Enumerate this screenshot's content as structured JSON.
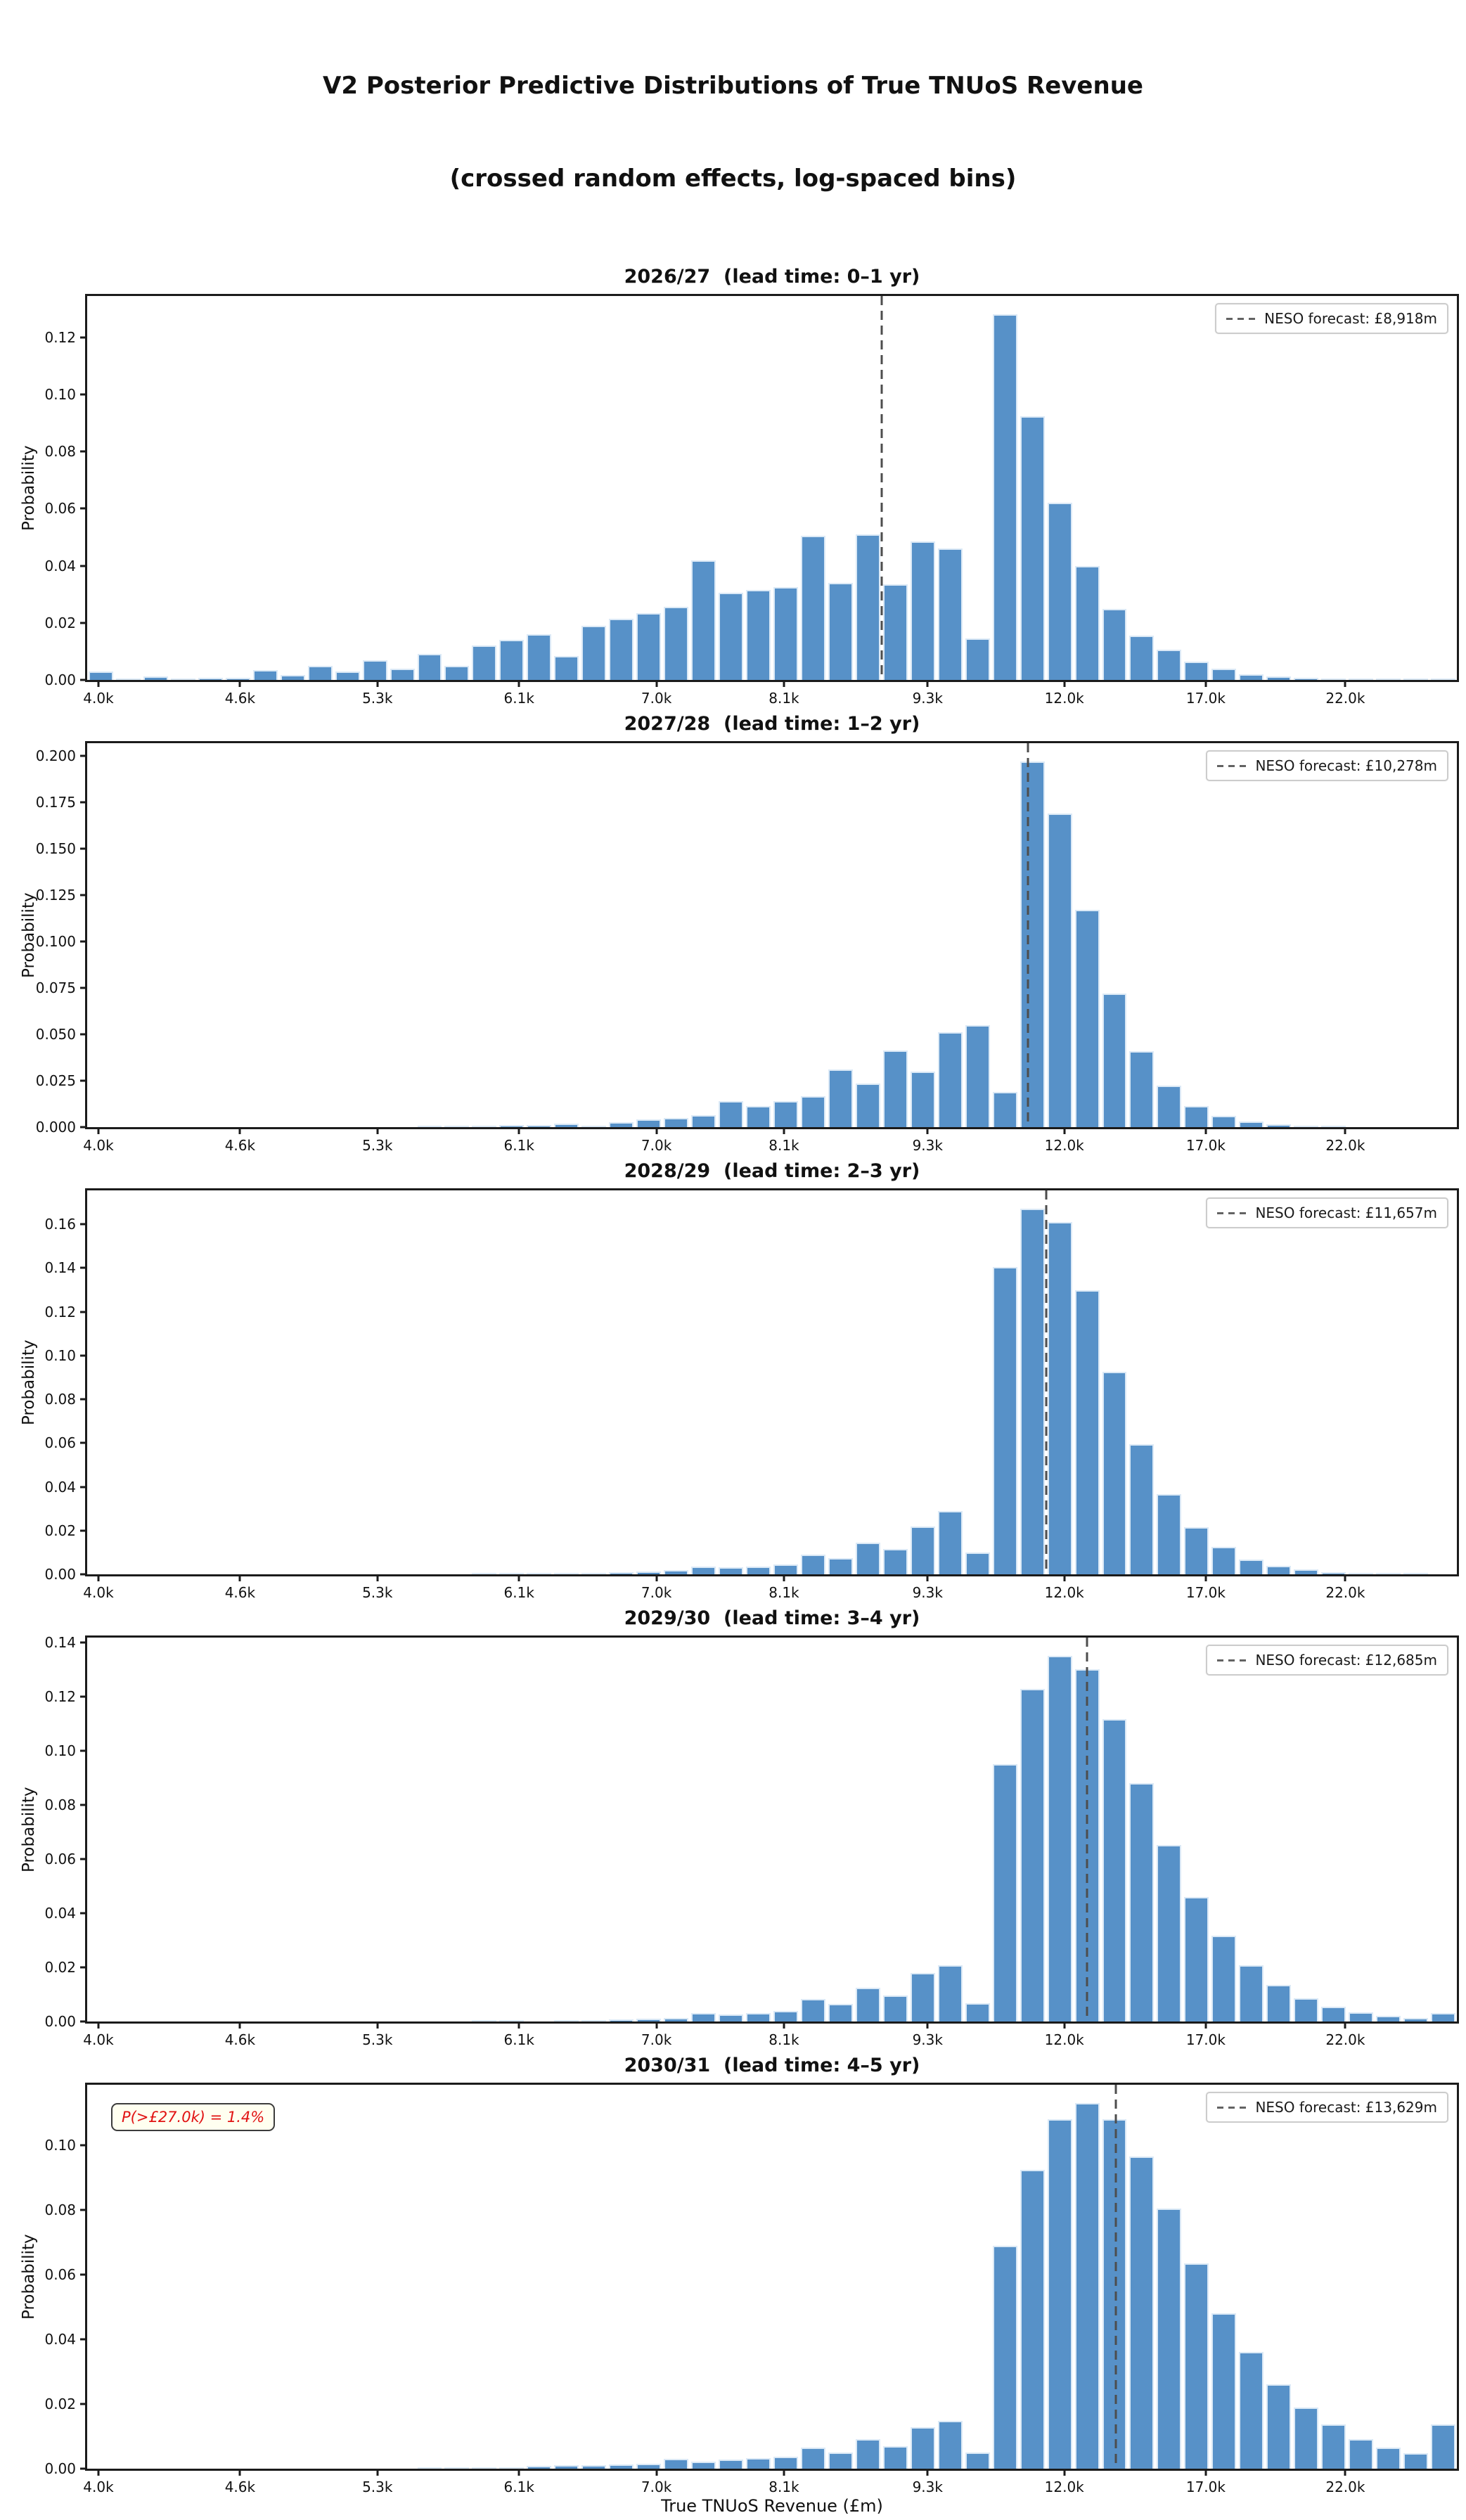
{
  "figure": {
    "title_line1": "V2 Posterior Predictive Distributions of True TNUoS Revenue",
    "title_line2": "(crossed random effects, log-spaced bins)"
  },
  "chart_data": {
    "type": "bar",
    "subtype": "histogram, log-spaced bins, 50 bins per panel",
    "figure_title": [
      "V2 Posterior Predictive Distributions of True TNUoS Revenue",
      "(crossed random effects, log-spaced bins)"
    ],
    "xlabel": "True TNUoS Revenue (£m)",
    "ylabel": "Probability",
    "legend_position": "upper right",
    "grid": false,
    "x_ticks": {
      "labels": [
        "4.0k",
        "4.6k",
        "5.3k",
        "6.1k",
        "7.0k",
        "8.1k",
        "9.3k",
        "12.0k",
        "17.0k",
        "22.0k"
      ],
      "fracs": [
        0.0082,
        0.1116,
        0.2119,
        0.3153,
        0.4156,
        0.5087,
        0.6136,
        0.7134,
        0.8167,
        0.9186
      ]
    },
    "neso_forecast_values_gbp_m": [
      8918,
      10278,
      11657,
      12685,
      13629
    ],
    "charts": [
      {
        "title": "2026/27  (lead time: 0–1 yr)",
        "legend_label": "NESO forecast: £8,918m",
        "neso_forecast_gbp_m": 8918,
        "neso_line_frac": 0.58,
        "ymax": 0.1345,
        "ytick_labels": [
          "0.00",
          "0.02",
          "0.04",
          "0.06",
          "0.08",
          "0.10",
          "0.12"
        ],
        "ytick_values": [
          0.0,
          0.02,
          0.04,
          0.06,
          0.08,
          0.1,
          0.12
        ],
        "values": [
          0.003,
          0.0004,
          0.0013,
          0.0006,
          0.0008,
          0.0008,
          0.0035,
          0.0017,
          0.005,
          0.003,
          0.007,
          0.004,
          0.009,
          0.005,
          0.012,
          0.014,
          0.016,
          0.0085,
          0.019,
          0.0215,
          0.0235,
          0.0255,
          0.042,
          0.0305,
          0.0315,
          0.0325,
          0.0505,
          0.034,
          0.051,
          0.0335,
          0.0485,
          0.046,
          0.0145,
          0.128,
          0.0925,
          0.062,
          0.04,
          0.025,
          0.0155,
          0.0105,
          0.0065,
          0.004,
          0.002,
          0.0013,
          0.0008,
          0.0005,
          0.0003,
          0.0002,
          0.0001,
          0.0004
        ]
      },
      {
        "title": "2027/28  (lead time: 1–2 yr)",
        "legend_label": "NESO forecast: £10,278m",
        "neso_forecast_gbp_m": 10278,
        "neso_line_frac": 0.687,
        "ymax": 0.207,
        "ytick_labels": [
          "0.000",
          "0.025",
          "0.050",
          "0.075",
          "0.100",
          "0.125",
          "0.150",
          "0.175",
          "0.200"
        ],
        "ytick_values": [
          0.0,
          0.025,
          0.05,
          0.075,
          0.1,
          0.125,
          0.15,
          0.175,
          0.2
        ],
        "values": [
          0,
          0,
          0,
          0,
          0,
          0,
          0,
          0,
          0,
          0,
          0,
          0,
          0.0004,
          0.0002,
          0.0008,
          0.001,
          0.0013,
          0.0018,
          0.0008,
          0.0028,
          0.004,
          0.005,
          0.0065,
          0.014,
          0.0115,
          0.014,
          0.0165,
          0.031,
          0.0235,
          0.0415,
          0.03,
          0.051,
          0.055,
          0.019,
          0.197,
          0.169,
          0.117,
          0.072,
          0.041,
          0.0225,
          0.0115,
          0.006,
          0.003,
          0.0015,
          0.0008,
          0.0004,
          0,
          0,
          0,
          0
        ]
      },
      {
        "title": "2028/29  (lead time: 2–3 yr)",
        "legend_label": "NESO forecast: £11,657m",
        "neso_forecast_gbp_m": 11657,
        "neso_line_frac": 0.7,
        "ymax": 0.1755,
        "ytick_labels": [
          "0.00",
          "0.02",
          "0.04",
          "0.06",
          "0.08",
          "0.10",
          "0.12",
          "0.14",
          "0.16"
        ],
        "ytick_values": [
          0.0,
          0.02,
          0.04,
          0.06,
          0.08,
          0.1,
          0.12,
          0.14,
          0.16
        ],
        "values": [
          0,
          0,
          0,
          0,
          0,
          0,
          0,
          0,
          0,
          0,
          0,
          0,
          0,
          0,
          0.0003,
          0.0002,
          0.0003,
          0.0005,
          0.0008,
          0.001,
          0.0012,
          0.0018,
          0.0035,
          0.0032,
          0.0035,
          0.0045,
          0.009,
          0.0075,
          0.0145,
          0.0115,
          0.022,
          0.029,
          0.01,
          0.1405,
          0.167,
          0.161,
          0.13,
          0.0925,
          0.0595,
          0.0365,
          0.0215,
          0.0125,
          0.0068,
          0.004,
          0.0022,
          0.001,
          0.0008,
          0.0004,
          0.0002,
          0
        ]
      },
      {
        "title": "2029/30  (lead time: 3–4 yr)",
        "legend_label": "NESO forecast: £12,685m",
        "neso_forecast_gbp_m": 12685,
        "neso_line_frac": 0.73,
        "ymax": 0.1418,
        "ytick_labels": [
          "0.00",
          "0.02",
          "0.04",
          "0.06",
          "0.08",
          "0.10",
          "0.12",
          "0.14"
        ],
        "ytick_values": [
          0.0,
          0.02,
          0.04,
          0.06,
          0.08,
          0.1,
          0.12,
          0.14
        ],
        "values": [
          0,
          0,
          0,
          0,
          0,
          0,
          0,
          0,
          0,
          0,
          0,
          0,
          0,
          0,
          0.0003,
          0.0003,
          0,
          0.0003,
          0.0005,
          0.0008,
          0.001,
          0.0012,
          0.0032,
          0.0025,
          0.003,
          0.004,
          0.0082,
          0.0065,
          0.0125,
          0.0095,
          0.0178,
          0.0208,
          0.0068,
          0.095,
          0.1228,
          0.135,
          0.13,
          0.1118,
          0.088,
          0.0652,
          0.046,
          0.0318,
          0.0208,
          0.0135,
          0.0085,
          0.0055,
          0.0035,
          0.002,
          0.0012,
          0.003
        ]
      },
      {
        "title": "2030/31  (lead time: 4–5 yr)",
        "legend_label": "NESO forecast: £13,629m",
        "neso_forecast_gbp_m": 13629,
        "neso_line_frac": 0.751,
        "ymax": 0.1187,
        "ytick_labels": [
          "0.00",
          "0.02",
          "0.04",
          "0.06",
          "0.08",
          "0.10"
        ],
        "ytick_values": [
          0.0,
          0.02,
          0.04,
          0.06,
          0.08,
          0.1
        ],
        "annotation": "P(>£27.0k) = 1.4%",
        "values": [
          0,
          0,
          0,
          0,
          0,
          0,
          0,
          0,
          0,
          0,
          0,
          0,
          0.0002,
          0.0004,
          0.0004,
          0.0002,
          0.0008,
          0.001,
          0.001,
          0.0012,
          0.0015,
          0.003,
          0.0022,
          0.0028,
          0.0032,
          0.0038,
          0.0065,
          0.005,
          0.0092,
          0.007,
          0.0128,
          0.0148,
          0.005,
          0.069,
          0.0925,
          0.108,
          0.113,
          0.108,
          0.0965,
          0.0805,
          0.0635,
          0.048,
          0.036,
          0.026,
          0.019,
          0.0138,
          0.0092,
          0.0065,
          0.0048,
          0.0138
        ]
      }
    ],
    "colors": {
      "bar_fill": "#5791c8",
      "bar_edge": "#dbe9f6",
      "neso_line": "#4d4d4d",
      "annotation_text": "#e11212",
      "annotation_bg": "#fffff0",
      "annotation_border": "#3c3c3c"
    }
  }
}
